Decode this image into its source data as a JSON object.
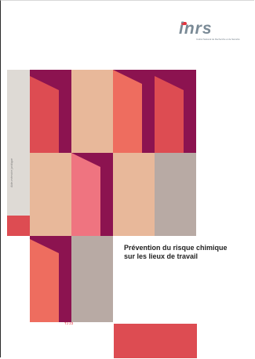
{
  "publisher": {
    "logo_text": "inrs",
    "logo_subtitle": "Institut National de Recherche et de Sécurité"
  },
  "cover": {
    "series_label": "Aide-mémoire juridique",
    "title_line1": "Prévention du risque chimique",
    "title_line2": "sur les lieux de travail",
    "reference": "TJ 23"
  },
  "colors": {
    "plum": "#8c1350",
    "peach": "#e8b89a",
    "coral": "#ee6d5f",
    "red": "#dd4c52",
    "taupe": "#b8aaa4",
    "pink": "#ef7480",
    "strip": "#dedad5"
  }
}
